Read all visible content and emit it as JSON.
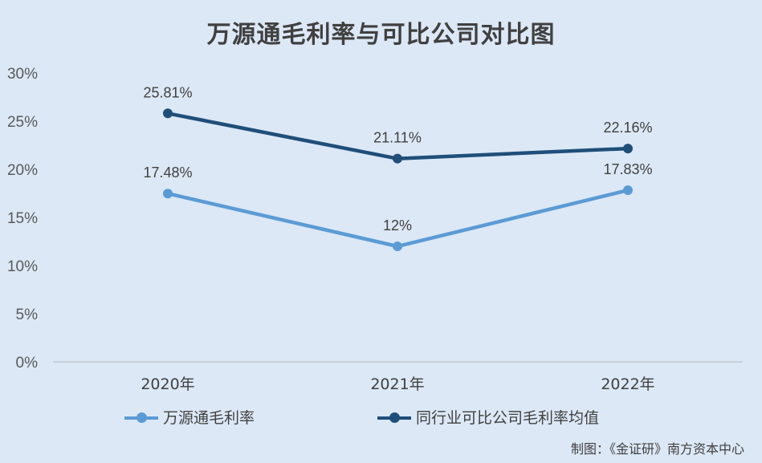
{
  "chart_data": {
    "type": "line",
    "title": "万源通毛利率与可比公司对比图",
    "categories": [
      "2020年",
      "2021年",
      "2022年"
    ],
    "series": [
      {
        "name": "万源通毛利率",
        "values": [
          17.48,
          12,
          17.83
        ],
        "labels": [
          "17.48%",
          "12%",
          "17.83%"
        ],
        "color": "#5b9bd5"
      },
      {
        "name": "同行业可比公司毛利率均值",
        "values": [
          25.81,
          21.11,
          22.16
        ],
        "labels": [
          "25.81%",
          "21.11%",
          "22.16%"
        ],
        "color": "#1f4e79"
      }
    ],
    "ylim": [
      0,
      30
    ],
    "yticks": [
      "0%",
      "5%",
      "10%",
      "15%",
      "20%",
      "25%",
      "30%"
    ],
    "grid": false,
    "legend_position": "bottom"
  },
  "footer": {
    "source": "制图：《金证研》南方资本中心"
  }
}
